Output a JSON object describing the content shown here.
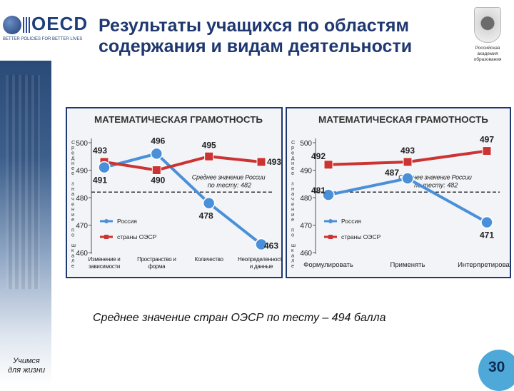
{
  "header": {
    "title_line1": "Результаты учащихся по областям",
    "title_line2": "содержания и видам деятельности",
    "logo_text": "OECD",
    "logo_motto": "BETTER POLICIES FOR BETTER LIVES",
    "emblem_caption_1": "Российская",
    "emblem_caption_2": "академия",
    "emblem_caption_3": "образования"
  },
  "footer": {
    "summary": "Среднее значение  стран ОЭСР по тесту – 494 балла",
    "slogan_1": "Учимся",
    "slogan_2": "для жизни",
    "slide_number": "30"
  },
  "colors": {
    "russia": "#4a90d9",
    "oecd": "#cc3333",
    "axis": "#555555",
    "title_blue": "#1f3870"
  },
  "chart_data": [
    {
      "type": "line",
      "title": "МАТЕМАТИЧЕСКАЯ ГРАМОТНОСТЬ",
      "ylabel": "Среднее значение по шкале",
      "ylim": [
        460,
        500
      ],
      "yticks": [
        460,
        470,
        480,
        490,
        500
      ],
      "categories": [
        "Изменение и зависимости",
        "Пространство и форма",
        "Количество",
        "Неопределенность и данные"
      ],
      "series": [
        {
          "name": "Россия",
          "values": [
            491,
            496,
            478,
            463
          ]
        },
        {
          "name": "страны ОЭСР",
          "values": [
            493,
            490,
            495,
            493
          ]
        }
      ],
      "reference_line": {
        "value": 482,
        "label_1": "Среднее значение России",
        "label_2": "по тесту: 482"
      },
      "legend": "bottom-left"
    },
    {
      "type": "line",
      "title": "МАТЕМАТИЧЕСКАЯ ГРАМОТНОСТЬ",
      "ylabel": "Среднее значение по шкале",
      "ylim": [
        460,
        500
      ],
      "yticks": [
        460,
        470,
        480,
        490,
        500
      ],
      "categories": [
        "Формулировать",
        "Применять",
        "Интерпретировать"
      ],
      "series": [
        {
          "name": "Россия",
          "values": [
            481,
            487,
            471
          ]
        },
        {
          "name": "страны ОЭСР",
          "values": [
            492,
            493,
            497
          ]
        }
      ],
      "reference_line": {
        "value": 482,
        "label_1": "Среднее значение России",
        "label_2": "по тесту: 482"
      },
      "legend": "bottom-left"
    }
  ]
}
